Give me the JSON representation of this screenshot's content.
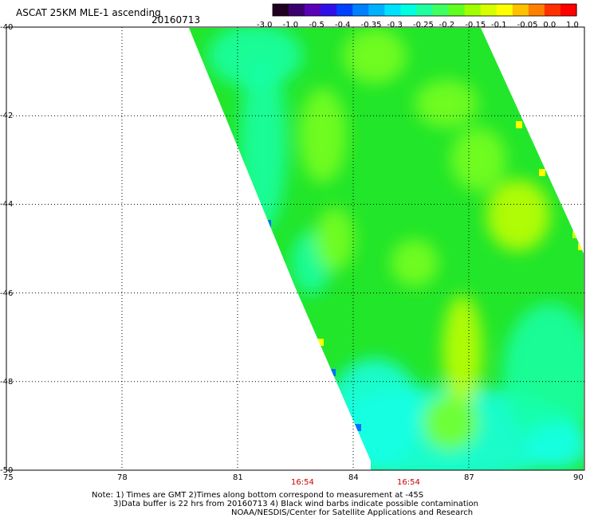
{
  "header": {
    "title": "ASCAT 25KM MLE-1 ascending",
    "date": "20160713"
  },
  "colorbar": {
    "colors": [
      "#200020",
      "#3a0070",
      "#5a00b8",
      "#3010e8",
      "#0040ff",
      "#0080ff",
      "#00b0ff",
      "#00e0ff",
      "#00ffe0",
      "#20ffa0",
      "#40ff60",
      "#60ff20",
      "#a0ff00",
      "#d8ff00",
      "#ffff00",
      "#ffc000",
      "#ff8000",
      "#ff3000",
      "#ff0000"
    ],
    "tick_labels": [
      "-3.0",
      "-1.0",
      "-0.5",
      "-0.4",
      "-0.35",
      "-0.3",
      "-0.25",
      "-0.2",
      "-0.15",
      "-0.1",
      "-0.05",
      "0.0",
      "1.0"
    ]
  },
  "map": {
    "lat_labels": [
      "-40",
      "-42",
      "-44",
      "-46",
      "-48",
      "-50"
    ],
    "lon_labels": [
      "75",
      "78",
      "81",
      "84",
      "87",
      "90"
    ],
    "lat_range": [
      -50,
      -40
    ],
    "lon_range": [
      75,
      90
    ],
    "grid": "dotted",
    "time_labels": [
      "16:54",
      "16:54"
    ],
    "swath_colors": {
      "green": "#22e62a",
      "light_green": "#7cff20",
      "yellow_green": "#c8ff00",
      "cyan_green": "#18ffa8",
      "cyan": "#18ffe6",
      "blue": "#0070ff",
      "yellow": "#ffff00"
    }
  },
  "notes": {
    "line1": "Note: 1) Times are GMT 2)Times along bottom correspond to measurement at -45S",
    "line2": "3)Data buffer is 22 hrs from 20160713 4) Black wind barbs indicate possible contamination",
    "line3": "NOAA/NESDIS/Center for Satellite Applications and Research"
  }
}
